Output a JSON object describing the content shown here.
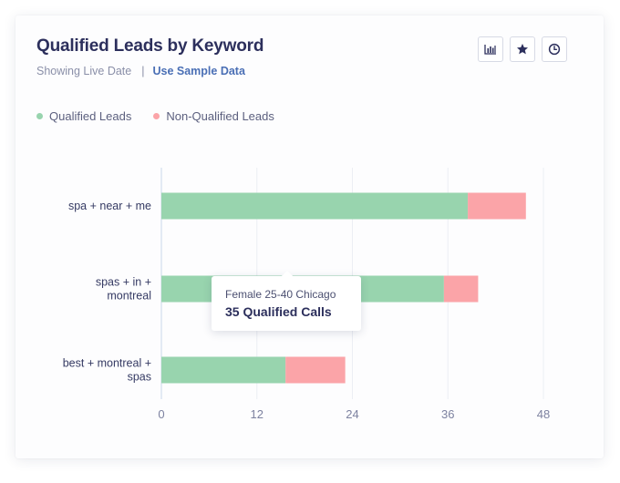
{
  "header": {
    "title": "Qualified Leads by Keyword",
    "status_text": "Showing Live Date",
    "separator": "|",
    "sample_link": "Use Sample Data"
  },
  "toolbar": {
    "buttons": [
      {
        "name": "chart-type-button",
        "icon": "bar-chart-icon"
      },
      {
        "name": "favorite-button",
        "icon": "star-icon"
      },
      {
        "name": "history-button",
        "icon": "clock-icon"
      }
    ]
  },
  "colors": {
    "qualified": "#98d4ae",
    "non_qualified": "#fba4a8",
    "accent": "#4a6fb5",
    "title": "#2c2f5c"
  },
  "chart_data": {
    "type": "bar",
    "orientation": "horizontal",
    "stacked": true,
    "title": "Qualified Leads by Keyword",
    "categories": [
      [
        "spa + near + me"
      ],
      [
        "spas + in +",
        "montreal"
      ],
      [
        "best + montreal +",
        "spas"
      ]
    ],
    "series": [
      {
        "name": "Qualified Leads",
        "values": [
          38.5,
          35.5,
          15.6
        ]
      },
      {
        "name": "Non-Qualified Leads",
        "values": [
          7.3,
          4.3,
          7.5
        ]
      }
    ],
    "xlim": [
      0,
      48
    ],
    "xticks": [
      0,
      12,
      24,
      36,
      48
    ],
    "grid": true,
    "legend_position": "top-left"
  },
  "tooltip": {
    "line1": "Female 25-40 Chicago",
    "line2": "35 Qualified Calls"
  }
}
